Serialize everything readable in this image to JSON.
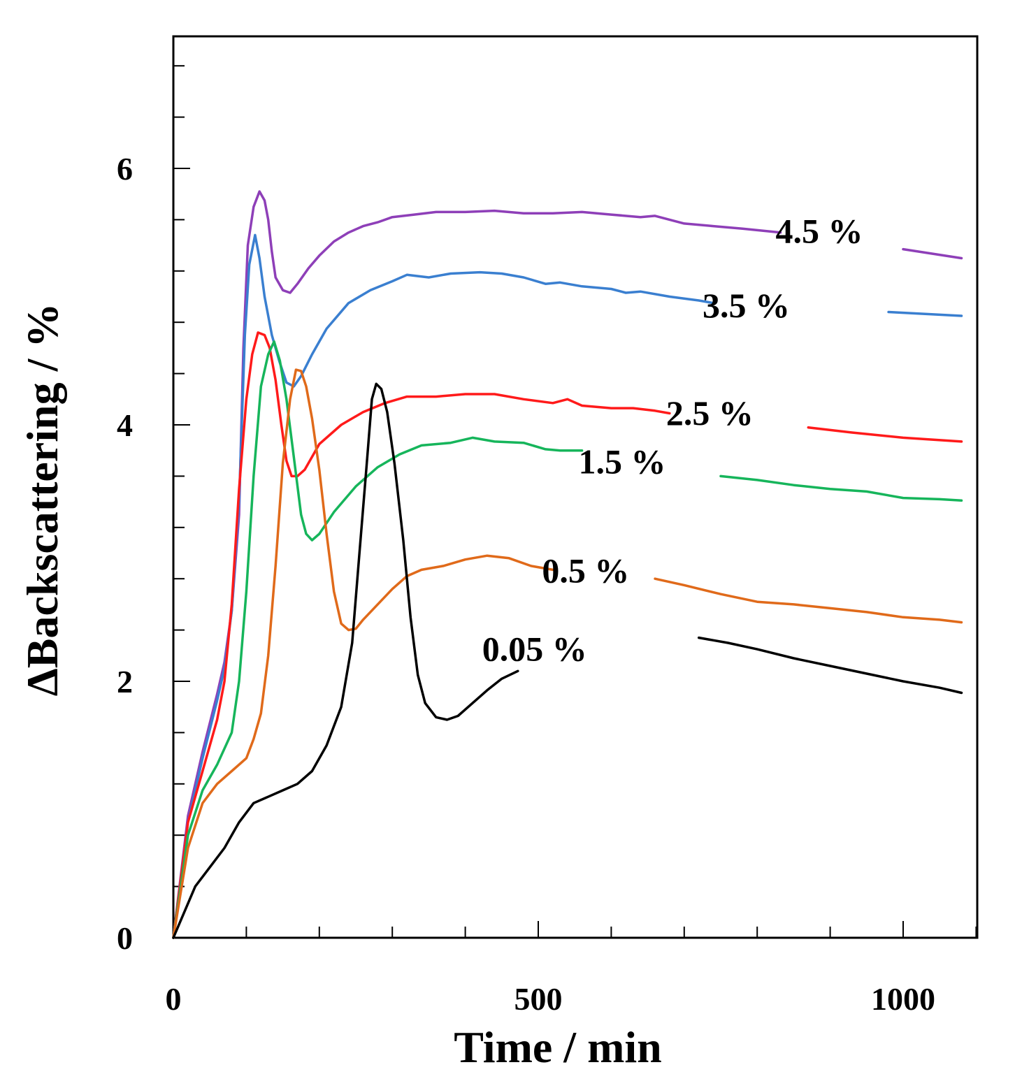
{
  "chart_data": {
    "type": "line",
    "xlabel": "Time / min",
    "ylabel": "ΔBackscattering / %",
    "xlim": [
      0,
      1100
    ],
    "ylim": [
      0,
      7.2
    ],
    "x_ticks": [
      0,
      500,
      1000
    ],
    "y_ticks": [
      0,
      2,
      4,
      6
    ],
    "grid": false,
    "legend": "inline labels",
    "series": [
      {
        "name": "4.5 %",
        "color": "#8e3fb8",
        "gaps": [
          [
            832,
            1000
          ]
        ],
        "points": [
          [
            0,
            0
          ],
          [
            20,
            0.95
          ],
          [
            40,
            1.45
          ],
          [
            60,
            1.9
          ],
          [
            70,
            2.15
          ],
          [
            80,
            2.55
          ],
          [
            90,
            3.3
          ],
          [
            96,
            4.6
          ],
          [
            102,
            5.4
          ],
          [
            110,
            5.7
          ],
          [
            118,
            5.82
          ],
          [
            125,
            5.75
          ],
          [
            130,
            5.6
          ],
          [
            135,
            5.35
          ],
          [
            140,
            5.15
          ],
          [
            150,
            5.05
          ],
          [
            160,
            5.03
          ],
          [
            170,
            5.1
          ],
          [
            185,
            5.22
          ],
          [
            200,
            5.32
          ],
          [
            220,
            5.43
          ],
          [
            240,
            5.5
          ],
          [
            260,
            5.55
          ],
          [
            280,
            5.58
          ],
          [
            300,
            5.62
          ],
          [
            330,
            5.64
          ],
          [
            360,
            5.66
          ],
          [
            400,
            5.66
          ],
          [
            440,
            5.67
          ],
          [
            480,
            5.65
          ],
          [
            520,
            5.65
          ],
          [
            560,
            5.66
          ],
          [
            600,
            5.64
          ],
          [
            640,
            5.62
          ],
          [
            660,
            5.63
          ],
          [
            700,
            5.57
          ],
          [
            740,
            5.55
          ],
          [
            780,
            5.53
          ],
          [
            832,
            5.5
          ],
          [
            1000,
            5.37
          ],
          [
            1080,
            5.3
          ]
        ]
      },
      {
        "name": "3.5 %",
        "color": "#3a7fd0",
        "gaps": [
          [
            740,
            980
          ]
        ],
        "points": [
          [
            0,
            0
          ],
          [
            20,
            0.9
          ],
          [
            40,
            1.4
          ],
          [
            60,
            1.85
          ],
          [
            70,
            2.1
          ],
          [
            80,
            2.55
          ],
          [
            90,
            3.4
          ],
          [
            98,
            4.7
          ],
          [
            104,
            5.25
          ],
          [
            112,
            5.48
          ],
          [
            118,
            5.3
          ],
          [
            125,
            5.0
          ],
          [
            135,
            4.7
          ],
          [
            145,
            4.5
          ],
          [
            155,
            4.33
          ],
          [
            165,
            4.3
          ],
          [
            175,
            4.38
          ],
          [
            190,
            4.55
          ],
          [
            210,
            4.75
          ],
          [
            240,
            4.95
          ],
          [
            270,
            5.05
          ],
          [
            300,
            5.12
          ],
          [
            320,
            5.17
          ],
          [
            350,
            5.15
          ],
          [
            380,
            5.18
          ],
          [
            420,
            5.19
          ],
          [
            450,
            5.18
          ],
          [
            480,
            5.15
          ],
          [
            510,
            5.1
          ],
          [
            530,
            5.11
          ],
          [
            560,
            5.08
          ],
          [
            600,
            5.06
          ],
          [
            620,
            5.03
          ],
          [
            640,
            5.04
          ],
          [
            680,
            5.0
          ],
          [
            720,
            4.97
          ],
          [
            740,
            4.95
          ],
          [
            980,
            4.88
          ],
          [
            1080,
            4.85
          ]
        ]
      },
      {
        "name": "2.5 %",
        "color": "#ff1a1a",
        "gaps": [
          [
            680,
            870
          ]
        ],
        "points": [
          [
            0,
            0
          ],
          [
            20,
            0.9
          ],
          [
            40,
            1.3
          ],
          [
            60,
            1.7
          ],
          [
            70,
            2.0
          ],
          [
            80,
            2.6
          ],
          [
            90,
            3.5
          ],
          [
            100,
            4.2
          ],
          [
            108,
            4.55
          ],
          [
            116,
            4.72
          ],
          [
            125,
            4.7
          ],
          [
            132,
            4.6
          ],
          [
            140,
            4.35
          ],
          [
            148,
            4.0
          ],
          [
            155,
            3.72
          ],
          [
            162,
            3.6
          ],
          [
            170,
            3.6
          ],
          [
            180,
            3.65
          ],
          [
            200,
            3.85
          ],
          [
            230,
            4.0
          ],
          [
            260,
            4.1
          ],
          [
            290,
            4.17
          ],
          [
            320,
            4.22
          ],
          [
            360,
            4.22
          ],
          [
            400,
            4.24
          ],
          [
            440,
            4.24
          ],
          [
            480,
            4.2
          ],
          [
            520,
            4.17
          ],
          [
            540,
            4.2
          ],
          [
            560,
            4.15
          ],
          [
            600,
            4.13
          ],
          [
            630,
            4.13
          ],
          [
            660,
            4.11
          ],
          [
            680,
            4.09
          ],
          [
            870,
            3.98
          ],
          [
            930,
            3.94
          ],
          [
            1000,
            3.9
          ],
          [
            1080,
            3.87
          ]
        ]
      },
      {
        "name": "1.5 %",
        "color": "#16b55b",
        "gaps": [
          [
            560,
            750
          ]
        ],
        "points": [
          [
            0,
            0
          ],
          [
            20,
            0.8
          ],
          [
            40,
            1.15
          ],
          [
            60,
            1.35
          ],
          [
            80,
            1.6
          ],
          [
            90,
            2.0
          ],
          [
            100,
            2.7
          ],
          [
            110,
            3.6
          ],
          [
            120,
            4.3
          ],
          [
            130,
            4.55
          ],
          [
            138,
            4.65
          ],
          [
            146,
            4.5
          ],
          [
            155,
            4.2
          ],
          [
            165,
            3.75
          ],
          [
            175,
            3.3
          ],
          [
            182,
            3.15
          ],
          [
            190,
            3.1
          ],
          [
            200,
            3.15
          ],
          [
            220,
            3.32
          ],
          [
            250,
            3.52
          ],
          [
            280,
            3.67
          ],
          [
            310,
            3.77
          ],
          [
            340,
            3.84
          ],
          [
            380,
            3.86
          ],
          [
            410,
            3.9
          ],
          [
            440,
            3.87
          ],
          [
            480,
            3.86
          ],
          [
            510,
            3.81
          ],
          [
            530,
            3.8
          ],
          [
            545,
            3.8
          ],
          [
            560,
            3.8
          ],
          [
            750,
            3.6
          ],
          [
            800,
            3.57
          ],
          [
            850,
            3.53
          ],
          [
            900,
            3.5
          ],
          [
            950,
            3.48
          ],
          [
            1000,
            3.43
          ],
          [
            1050,
            3.42
          ],
          [
            1080,
            3.41
          ]
        ]
      },
      {
        "name": "0.5 %",
        "color": "#e06a1a",
        "gaps": [
          [
            520,
            660
          ]
        ],
        "points": [
          [
            0,
            0
          ],
          [
            20,
            0.7
          ],
          [
            40,
            1.05
          ],
          [
            60,
            1.2
          ],
          [
            80,
            1.3
          ],
          [
            100,
            1.4
          ],
          [
            110,
            1.55
          ],
          [
            120,
            1.75
          ],
          [
            130,
            2.2
          ],
          [
            140,
            2.9
          ],
          [
            150,
            3.7
          ],
          [
            160,
            4.2
          ],
          [
            168,
            4.43
          ],
          [
            175,
            4.42
          ],
          [
            182,
            4.3
          ],
          [
            190,
            4.05
          ],
          [
            200,
            3.65
          ],
          [
            210,
            3.15
          ],
          [
            220,
            2.7
          ],
          [
            230,
            2.45
          ],
          [
            240,
            2.4
          ],
          [
            250,
            2.41
          ],
          [
            260,
            2.48
          ],
          [
            280,
            2.6
          ],
          [
            300,
            2.72
          ],
          [
            320,
            2.82
          ],
          [
            340,
            2.87
          ],
          [
            370,
            2.9
          ],
          [
            400,
            2.95
          ],
          [
            430,
            2.98
          ],
          [
            460,
            2.96
          ],
          [
            490,
            2.9
          ],
          [
            520,
            2.87
          ],
          [
            660,
            2.8
          ],
          [
            700,
            2.75
          ],
          [
            750,
            2.68
          ],
          [
            800,
            2.62
          ],
          [
            850,
            2.6
          ],
          [
            900,
            2.57
          ],
          [
            950,
            2.54
          ],
          [
            1000,
            2.5
          ],
          [
            1050,
            2.48
          ],
          [
            1080,
            2.46
          ]
        ]
      },
      {
        "name": "0.05 %",
        "color": "#000000",
        "gaps": [
          [
            472,
            720
          ]
        ],
        "points": [
          [
            0,
            0
          ],
          [
            30,
            0.4
          ],
          [
            50,
            0.55
          ],
          [
            70,
            0.7
          ],
          [
            90,
            0.9
          ],
          [
            110,
            1.05
          ],
          [
            130,
            1.1
          ],
          [
            150,
            1.15
          ],
          [
            170,
            1.2
          ],
          [
            190,
            1.3
          ],
          [
            210,
            1.5
          ],
          [
            230,
            1.8
          ],
          [
            245,
            2.3
          ],
          [
            255,
            3.0
          ],
          [
            265,
            3.7
          ],
          [
            272,
            4.2
          ],
          [
            278,
            4.32
          ],
          [
            285,
            4.28
          ],
          [
            293,
            4.1
          ],
          [
            303,
            3.7
          ],
          [
            315,
            3.1
          ],
          [
            325,
            2.5
          ],
          [
            335,
            2.05
          ],
          [
            345,
            1.83
          ],
          [
            360,
            1.72
          ],
          [
            375,
            1.7
          ],
          [
            390,
            1.73
          ],
          [
            410,
            1.83
          ],
          [
            430,
            1.93
          ],
          [
            450,
            2.02
          ],
          [
            472,
            2.08
          ],
          [
            720,
            2.34
          ],
          [
            760,
            2.3
          ],
          [
            800,
            2.25
          ],
          [
            850,
            2.18
          ],
          [
            900,
            2.12
          ],
          [
            950,
            2.06
          ],
          [
            1000,
            2.0
          ],
          [
            1050,
            1.95
          ],
          [
            1080,
            1.91
          ]
        ]
      }
    ],
    "labels": [
      {
        "series": "4.5 %",
        "text": "4.5 %",
        "at_x": 885,
        "at_y": 5.42
      },
      {
        "series": "3.5 %",
        "text": "3.5 %",
        "at_x": 785,
        "at_y": 4.84
      },
      {
        "series": "2.5 %",
        "text": "2.5 %",
        "at_x": 735,
        "at_y": 4.0
      },
      {
        "series": "1.5 %",
        "text": "1.5 %",
        "at_x": 615,
        "at_y": 3.62
      },
      {
        "series": "0.5 %",
        "text": "0.5 %",
        "at_x": 565,
        "at_y": 2.77
      },
      {
        "series": "0.05 %",
        "text": "0.05 %",
        "at_x": 495,
        "at_y": 2.16
      }
    ]
  }
}
